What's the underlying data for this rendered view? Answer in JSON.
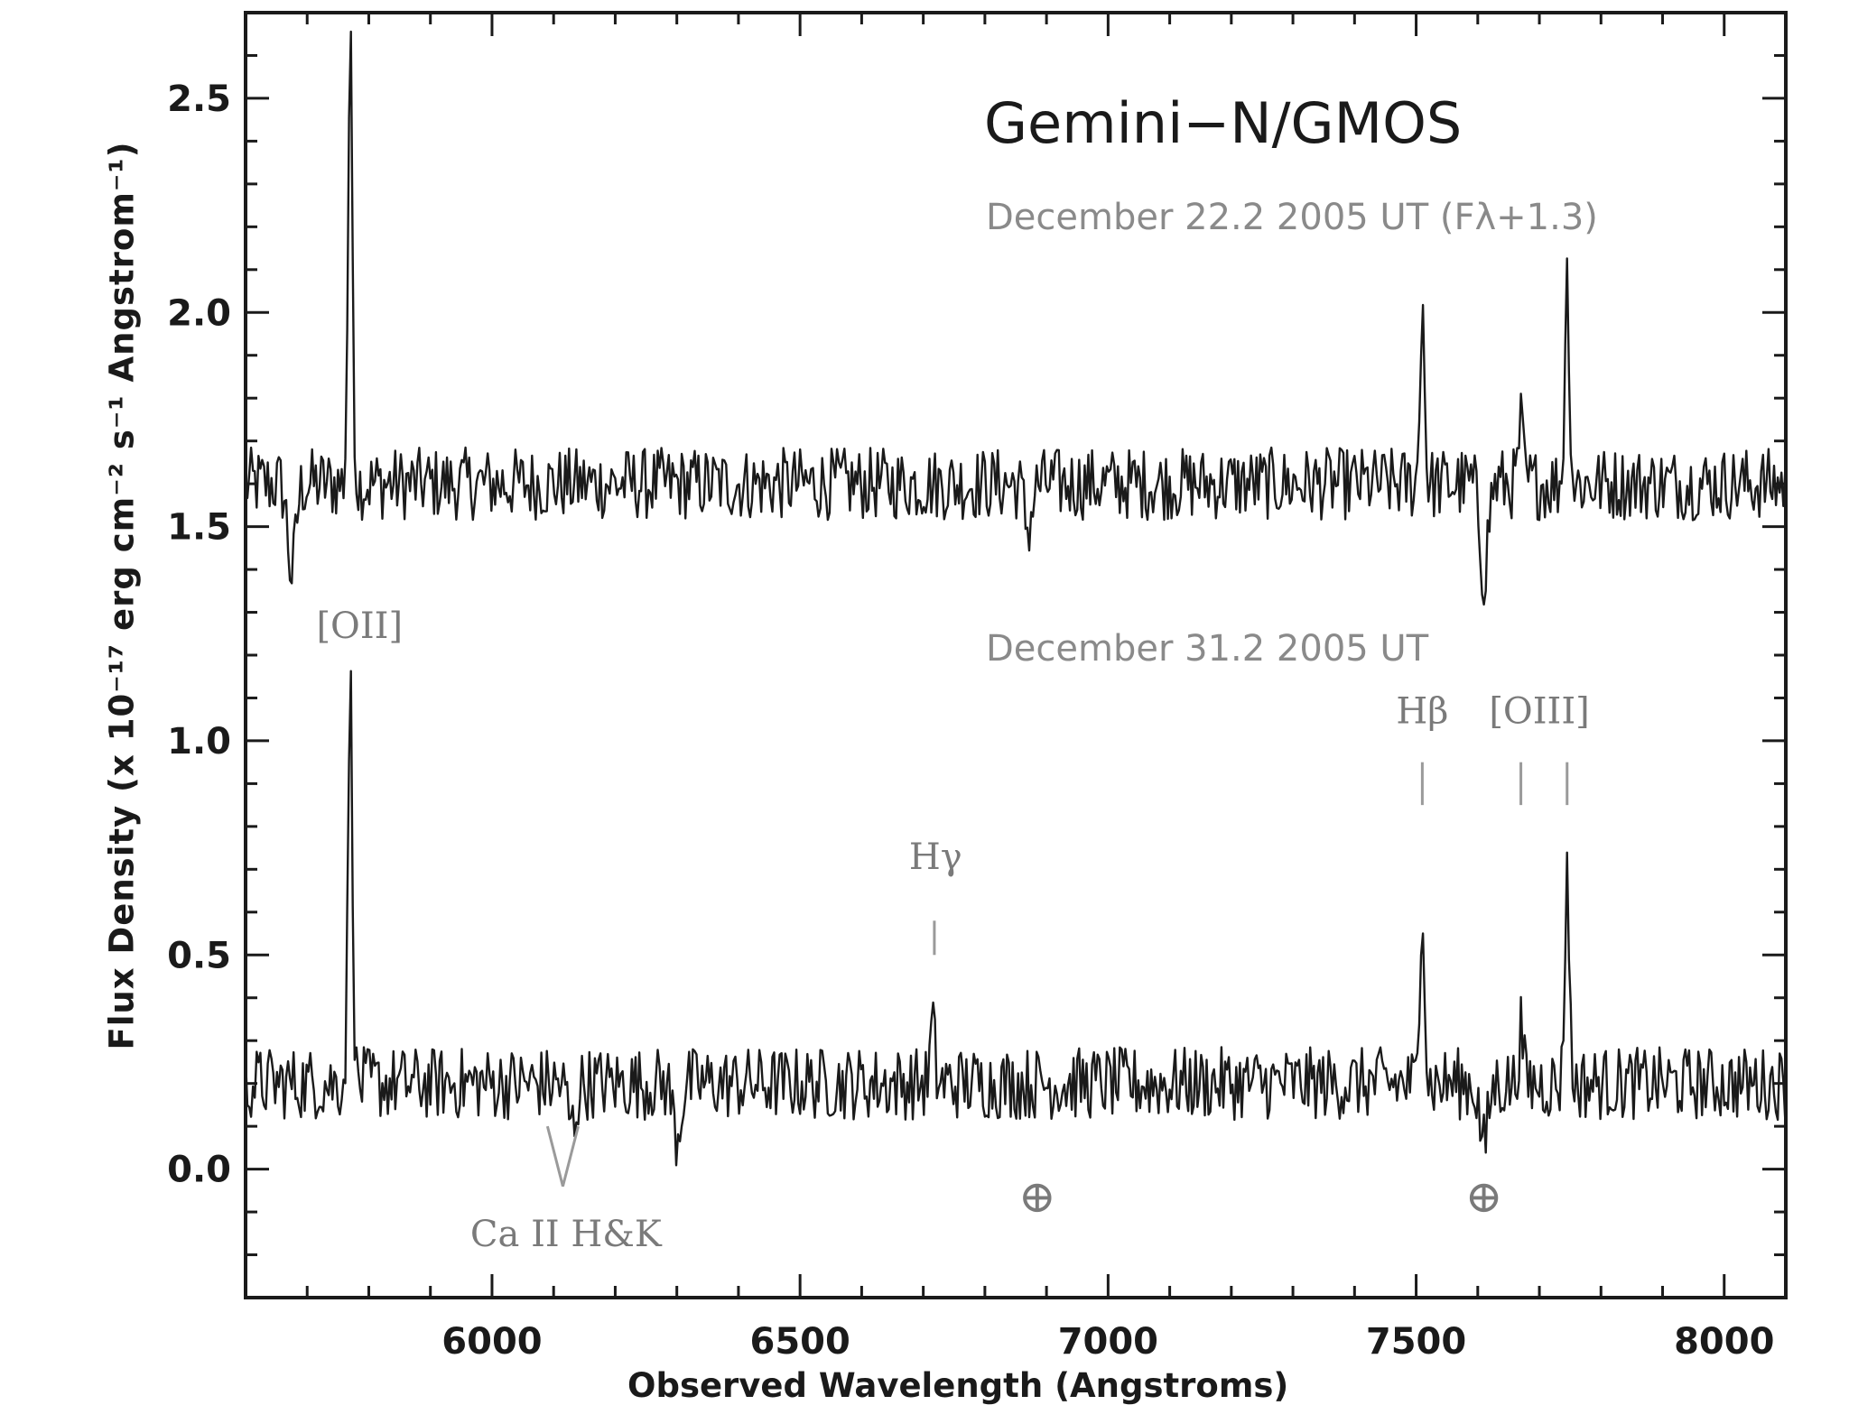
{
  "chart_data": {
    "type": "line",
    "instrument_label": "Gemini−N/GMOS",
    "xlabel": "Observed Wavelength (Angstroms)",
    "ylabel": "Flux Density (x 10⁻¹⁷ erg cm⁻² s⁻¹ Angstrom⁻¹)",
    "xlim": [
      5600,
      8100
    ],
    "ylim": [
      -0.3,
      2.7
    ],
    "xticks": [
      6000,
      6500,
      7000,
      7500,
      8000
    ],
    "yticks": [
      0.0,
      0.5,
      1.0,
      1.5,
      2.0,
      2.5
    ],
    "xtick_labels": [
      "6000",
      "6500",
      "7000",
      "7500",
      "8000"
    ],
    "ytick_labels": [
      "0.0",
      "0.5",
      "1.0",
      "1.5",
      "2.0",
      "2.5"
    ],
    "series": [
      {
        "label": "December 22.2 2005 UT (Fλ+1.3)",
        "continuum": 1.6,
        "peaks": [
          {
            "x": 5770,
            "y": 2.62
          },
          {
            "x": 7510,
            "y": 2.03
          },
          {
            "x": 7745,
            "y": 2.09
          },
          {
            "x": 7670,
            "y": 1.74
          }
        ],
        "dips": [
          {
            "x": 5675,
            "y": 1.39
          },
          {
            "x": 6870,
            "y": 1.5
          },
          {
            "x": 7610,
            "y": 1.39
          }
        ]
      },
      {
        "label": "December 31.2 2005 UT",
        "continuum": 0.2,
        "peaks": [
          {
            "x": 5770,
            "y": 1.14
          },
          {
            "x": 6715,
            "y": 0.34
          },
          {
            "x": 7510,
            "y": 0.65
          },
          {
            "x": 7670,
            "y": 0.33
          },
          {
            "x": 7745,
            "y": 0.71
          }
        ],
        "dips": [
          {
            "x": 6130,
            "y": 0.1
          },
          {
            "x": 6300,
            "y": 0.08
          },
          {
            "x": 7610,
            "y": 0.05
          }
        ]
      }
    ],
    "annotations": [
      {
        "text": "[OII]",
        "x": 5785,
        "y": 1.27
      },
      {
        "text": "Hγ",
        "x": 6720,
        "y": 0.73
      },
      {
        "text": "Hβ",
        "x": 7510,
        "y": 1.07
      },
      {
        "text": "[OIII]",
        "x": 7700,
        "y": 1.07
      },
      {
        "text": "Ca II H&K",
        "x": 6120,
        "y": -0.15
      },
      {
        "text": "⊕",
        "x": 6885,
        "y": -0.07
      },
      {
        "text": "⊕",
        "x": 7610,
        "y": -0.07
      }
    ],
    "line_markers": [
      {
        "x": 6718,
        "y0": 0.5,
        "y1": 0.58
      },
      {
        "x": 7510,
        "y0": 0.85,
        "y1": 0.95
      },
      {
        "x": 7670,
        "y0": 0.85,
        "y1": 0.95
      },
      {
        "x": 7745,
        "y0": 0.85,
        "y1": 0.95
      }
    ],
    "absorption_marker": {
      "x": [
        6090,
        6115,
        6140
      ],
      "y": [
        0.1,
        -0.04,
        0.1
      ]
    },
    "colors": {
      "spectrum": "#1a1a1a",
      "annotation": "#7a7a7a",
      "axis": "#1a1a1a"
    }
  }
}
